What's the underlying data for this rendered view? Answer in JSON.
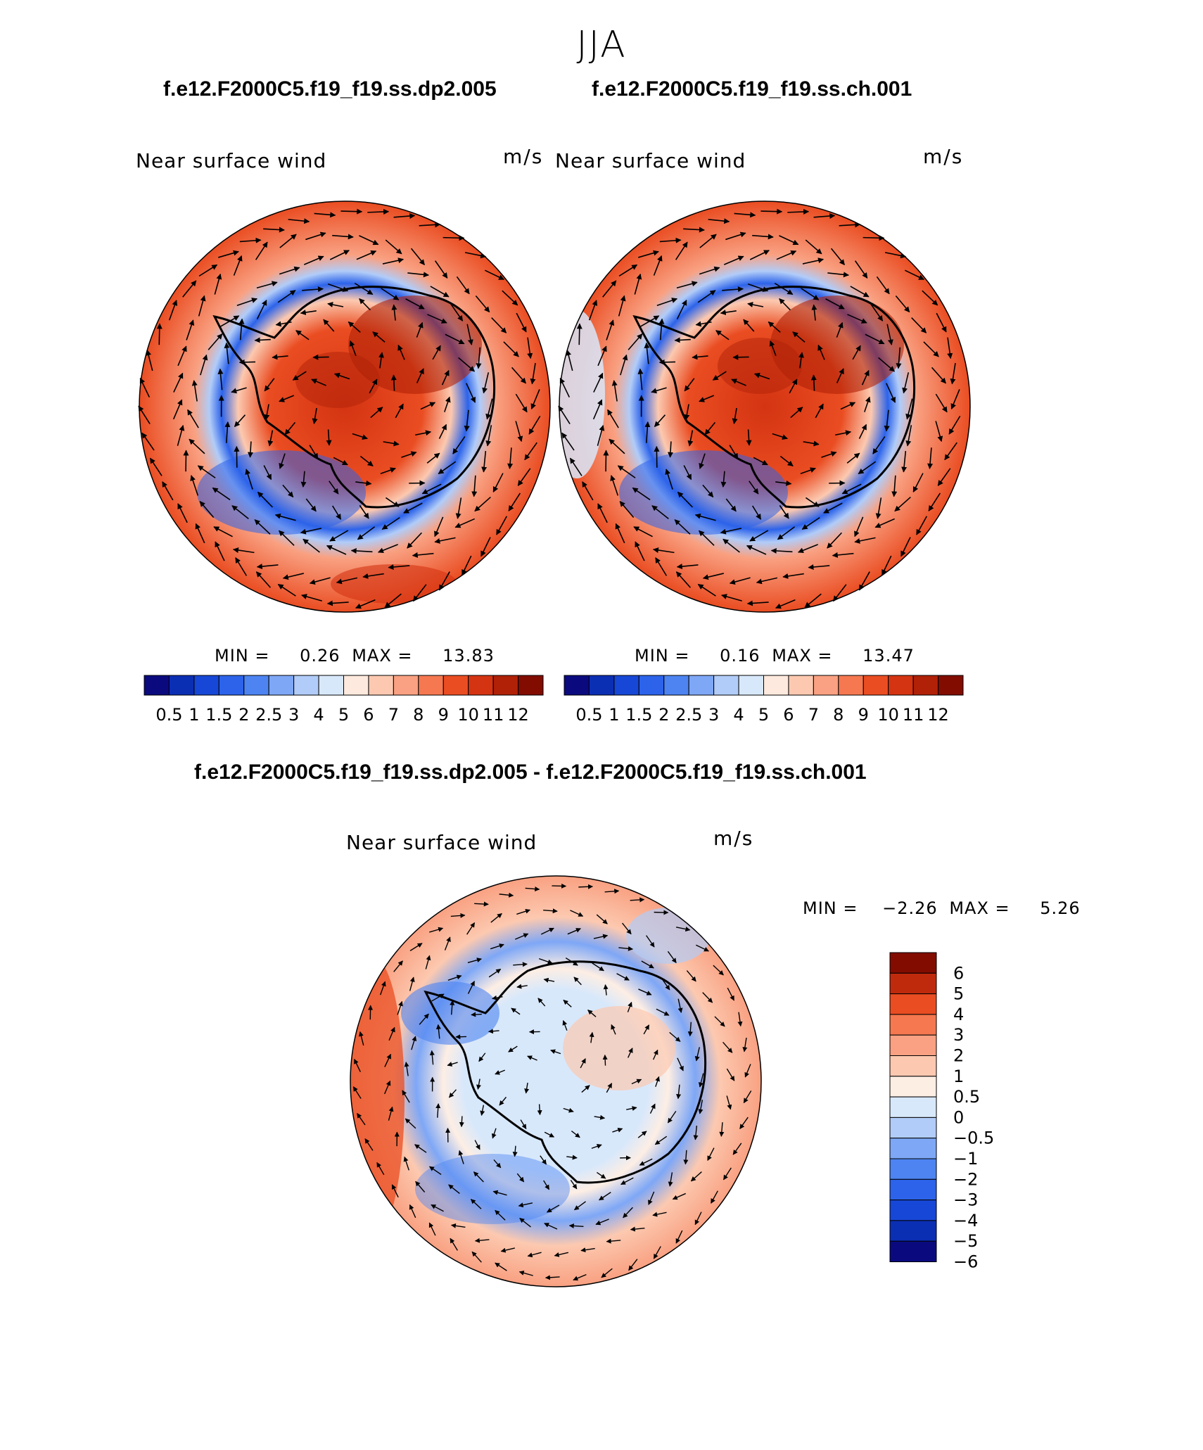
{
  "season": "JJA",
  "variable": "Near surface wind",
  "units": "m/s",
  "panels": [
    {
      "case": "f.e12.F2000C5.f19_f19.ss.dp2.005",
      "min_label": "MIN =",
      "min": "0.26",
      "max_label": "MAX =",
      "max": "13.83"
    },
    {
      "case": "f.e12.F2000C5.f19_f19.ss.ch.001",
      "min_label": "MIN =",
      "min": "0.16",
      "max_label": "MAX =",
      "max": "13.47"
    }
  ],
  "difference": {
    "title": "f.e12.F2000C5.f19_f19.ss.dp2.005 - f.e12.F2000C5.f19_f19.ss.ch.001",
    "min_label": "MIN =",
    "min": "−2.26",
    "max_label": "MAX =",
    "max": "5.26"
  },
  "abs_colorbar": {
    "colors": [
      "#0a0a7e",
      "#0b2fb3",
      "#1747d6",
      "#2c63ea",
      "#4d84f2",
      "#7ea7f6",
      "#b1ccf8",
      "#d8e8fb",
      "#fde9dd",
      "#fcc9b0",
      "#f9a182",
      "#f57850",
      "#ea4d22",
      "#d43412",
      "#b02107",
      "#820c00"
    ],
    "ticks": [
      "0.5",
      "1",
      "1.5",
      "2",
      "2.5",
      "3",
      "4",
      "5",
      "6",
      "7",
      "8",
      "9",
      "10",
      "11",
      "12"
    ]
  },
  "diff_colorbar": {
    "colors": [
      "#0a0a7e",
      "#0b2fb3",
      "#1747d6",
      "#2c63ea",
      "#4d84f2",
      "#7ea7f6",
      "#b1ccf8",
      "#d8e8fb",
      "#fdeee4",
      "#fcc9b0",
      "#f9a182",
      "#f57850",
      "#ea4d22",
      "#c02a0c",
      "#820c00"
    ],
    "ticks": [
      "6",
      "5",
      "4",
      "3",
      "2",
      "1",
      "0.5",
      "0",
      "−0.5",
      "−1",
      "−2",
      "−3",
      "−4",
      "−5",
      "−6"
    ]
  }
}
